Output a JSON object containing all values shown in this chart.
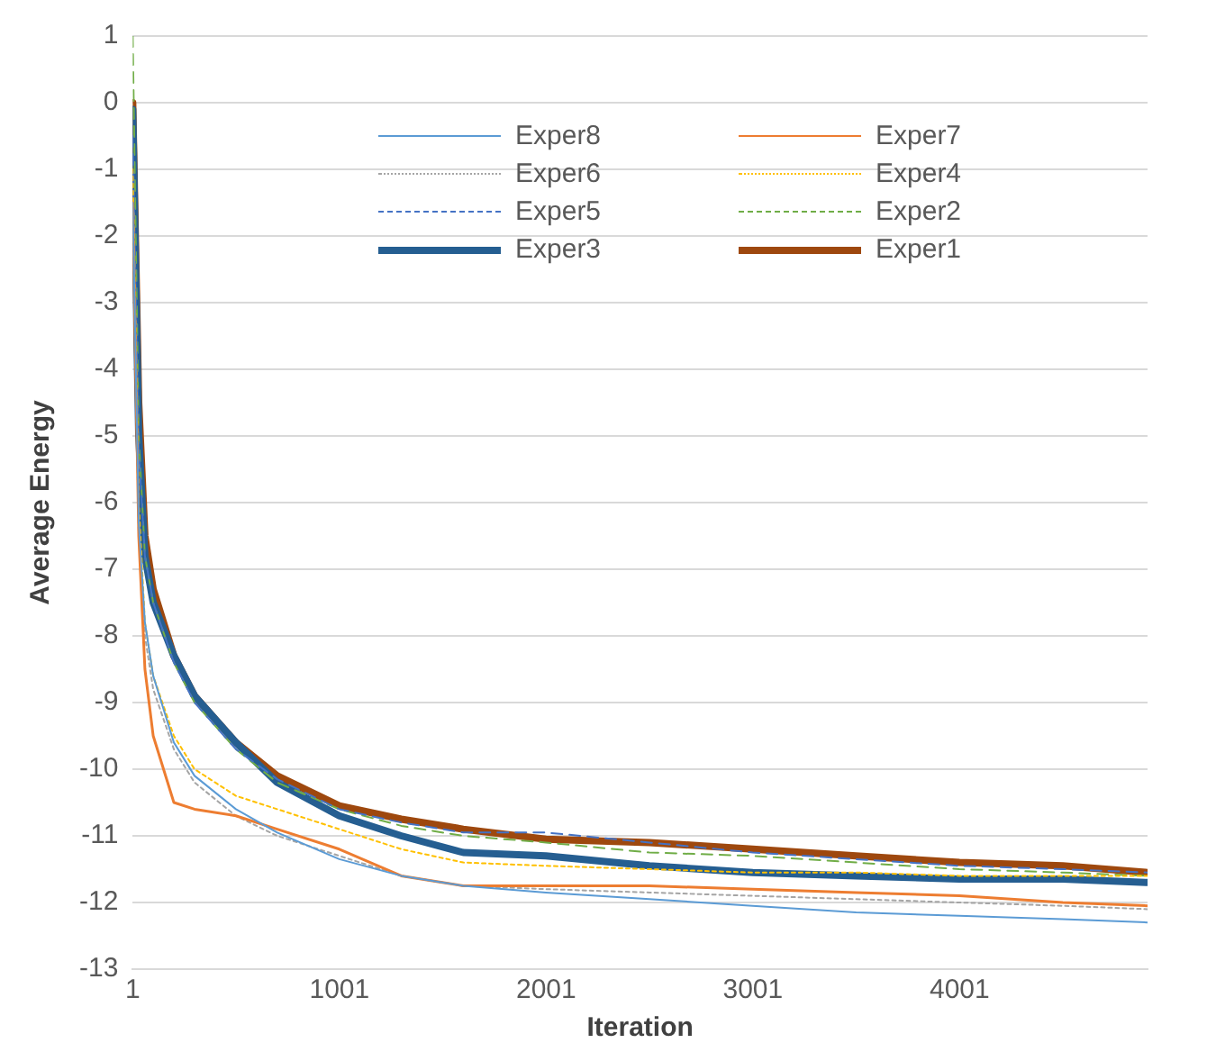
{
  "chart_data": {
    "type": "line",
    "xlabel": "Iteration",
    "ylabel": "Average Energy",
    "x": [
      1,
      30,
      60,
      100,
      200,
      300,
      500,
      700,
      1000,
      1300,
      1600,
      2000,
      2500,
      3000,
      3500,
      4000,
      4500,
      4910
    ],
    "xlim": [
      1,
      4910
    ],
    "xticks": [
      1,
      1001,
      2001,
      3001,
      4001
    ],
    "ylim": [
      -13,
      1
    ],
    "yticks": [
      -13,
      -12,
      -11,
      -10,
      -9,
      -8,
      -7,
      -6,
      -5,
      -4,
      -3,
      -2,
      -1,
      0,
      1
    ],
    "grid": "y",
    "legend": "top",
    "marker": "none",
    "series": [
      {
        "name": "Exper8",
        "color": "#5b9bd5",
        "line_style": "solid",
        "values": [
          -1.5,
          -6.3,
          -7.8,
          -8.6,
          -9.6,
          -10.1,
          -10.6,
          -10.95,
          -11.35,
          -11.6,
          -11.75,
          -11.85,
          -11.95,
          -12.05,
          -12.15,
          -12.2,
          -12.25,
          -12.3
        ]
      },
      {
        "name": "Exper7",
        "color": "#ed7d31",
        "line_style": "solid",
        "values": [
          -1.5,
          -6.5,
          -8.5,
          -9.5,
          -10.5,
          -10.6,
          -10.7,
          -10.9,
          -11.2,
          -11.6,
          -11.75,
          -11.75,
          -11.75,
          -11.8,
          -11.85,
          -11.9,
          -12,
          -12.05
        ]
      },
      {
        "name": "Exper6",
        "color": "#a5a5a5",
        "line_style": "dotted",
        "values": [
          -1.5,
          -6.5,
          -8,
          -8.8,
          -9.7,
          -10.2,
          -10.7,
          -11,
          -11.3,
          -11.6,
          -11.75,
          -11.8,
          -11.85,
          -11.9,
          -11.95,
          -12,
          -12.05,
          -12.1
        ]
      },
      {
        "name": "Exper4",
        "color": "#ffc000",
        "line_style": "dotted",
        "values": [
          -1,
          -6,
          -7.8,
          -8.6,
          -9.5,
          -10,
          -10.4,
          -10.6,
          -10.9,
          -11.2,
          -11.4,
          -11.45,
          -11.5,
          -11.55,
          -11.55,
          -11.6,
          -11.6,
          -11.6
        ]
      },
      {
        "name": "Exper5",
        "color": "#4472c4",
        "line_style": "dashed",
        "values": [
          -0.5,
          -5.2,
          -6.8,
          -7.5,
          -8.4,
          -9,
          -9.7,
          -10.15,
          -10.6,
          -10.8,
          -10.95,
          -10.95,
          -11.1,
          -11.25,
          -11.35,
          -11.45,
          -11.5,
          -11.55
        ]
      },
      {
        "name": "Exper2",
        "color": "#70ad47",
        "line_style": "dashed",
        "values": [
          1,
          -5,
          -6.8,
          -7.5,
          -8.4,
          -9,
          -9.7,
          -10.2,
          -10.6,
          -10.85,
          -11,
          -11.1,
          -11.25,
          -11.3,
          -11.4,
          -11.5,
          -11.55,
          -11.6
        ]
      },
      {
        "name": "Exper3",
        "color": "#255e91",
        "line_style": "solid",
        "values": [
          -0.1,
          -5,
          -6.8,
          -7.5,
          -8.3,
          -8.9,
          -9.6,
          -10.2,
          -10.7,
          -11,
          -11.25,
          -11.3,
          -11.45,
          -11.55,
          -11.6,
          -11.65,
          -11.65,
          -11.7
        ]
      },
      {
        "name": "Exper1",
        "color": "#9e480e",
        "line_style": "solid",
        "values": [
          0,
          -4.5,
          -6.5,
          -7.3,
          -8.3,
          -8.9,
          -9.6,
          -10.1,
          -10.55,
          -10.75,
          -10.9,
          -11.05,
          -11.1,
          -11.2,
          -11.3,
          -11.4,
          -11.45,
          -11.55
        ]
      }
    ]
  }
}
